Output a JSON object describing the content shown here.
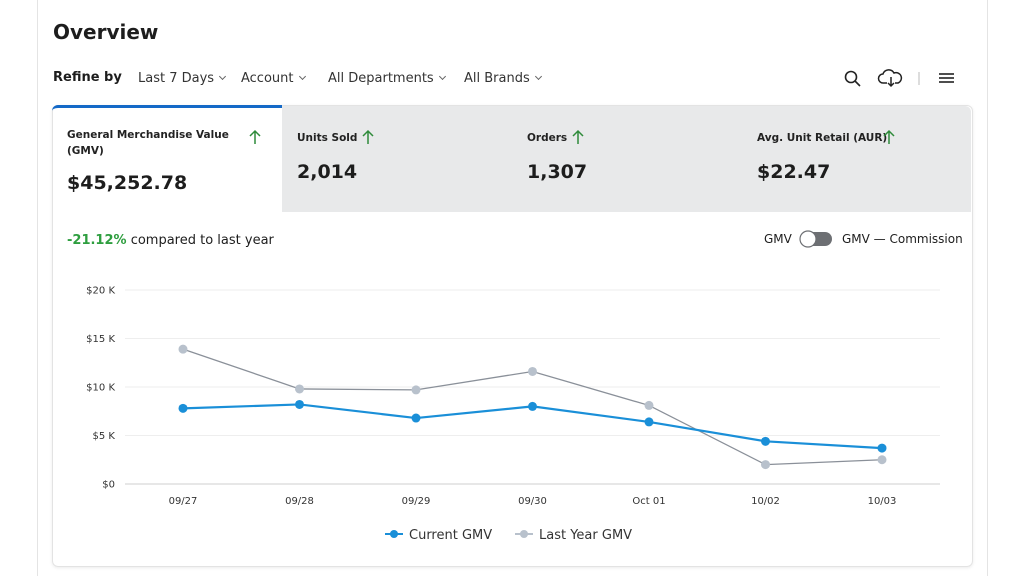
{
  "header": {
    "title": "Overview"
  },
  "filters": {
    "label": "Refine by",
    "items": [
      "Last 7 Days",
      "Account",
      "All Departments",
      "All Brands"
    ]
  },
  "metrics": [
    {
      "label": "General Merchandise Value (GMV)",
      "value": "$45,252.78"
    },
    {
      "label": "Units Sold",
      "value": "2,014"
    },
    {
      "label": "Orders",
      "value": "1,307"
    },
    {
      "label": "Avg. Unit Retail (AUR)",
      "value": "$22.47"
    }
  ],
  "comparison": {
    "change": "-21.12%",
    "text": "compared to last year"
  },
  "toggle": {
    "left": "GMV",
    "right": "GMV — Commission"
  },
  "chart_data": {
    "type": "line",
    "categories": [
      "09/27",
      "09/28",
      "09/29",
      "09/30",
      "Oct 01",
      "10/02",
      "10/03"
    ],
    "ylim": [
      0,
      20000
    ],
    "yticks": [
      {
        "value": 0,
        "label": "$0"
      },
      {
        "value": 5000,
        "label": "$5 K"
      },
      {
        "value": 10000,
        "label": "$10 K"
      },
      {
        "value": 15000,
        "label": "$15 K"
      },
      {
        "value": 20000,
        "label": "$20 K"
      }
    ],
    "grid": true,
    "legend": "bottom",
    "series": [
      {
        "name": "Current GMV",
        "color": "#1a8fd8",
        "values": [
          7800,
          8200,
          6800,
          8000,
          6400,
          4400,
          3700
        ]
      },
      {
        "name": "Last Year GMV",
        "color": "#b8c1cc",
        "values": [
          13900,
          9800,
          9700,
          11600,
          8100,
          2000,
          2500
        ]
      }
    ]
  }
}
